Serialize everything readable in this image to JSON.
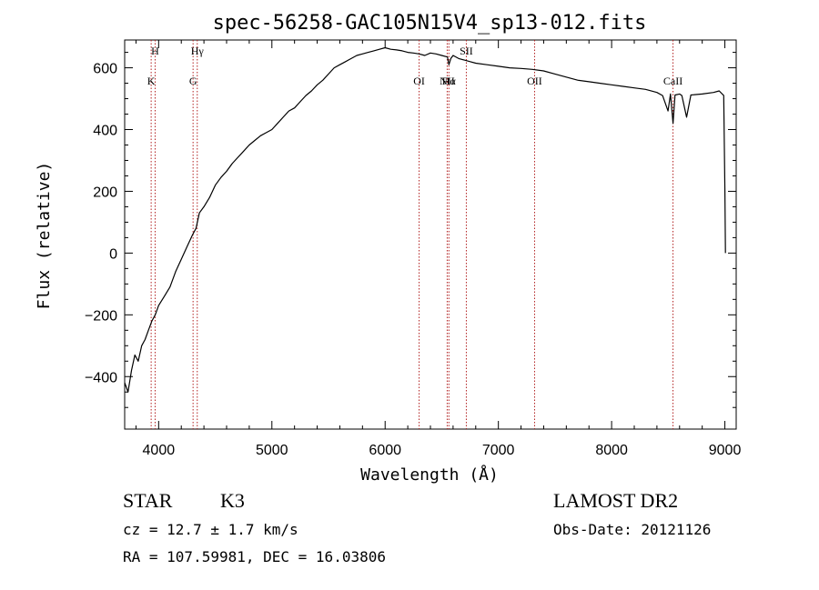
{
  "chart_data": {
    "type": "line",
    "title": "spec-56258-GAC105N15V4_sp13-012.fits",
    "xlabel": "Wavelength (Å)",
    "ylabel": "Flux (relative)",
    "xlim": [
      3700,
      9100
    ],
    "ylim": [
      -570,
      690
    ],
    "x_ticks": [
      4000,
      5000,
      6000,
      7000,
      8000,
      9000
    ],
    "y_ticks": [
      -400,
      -200,
      0,
      200,
      400,
      600
    ],
    "grid": false,
    "series": [
      {
        "name": "flux",
        "color": "#000000",
        "x": [
          3700,
          3730,
          3760,
          3790,
          3820,
          3850,
          3880,
          3910,
          3940,
          3970,
          4000,
          4050,
          4100,
          4150,
          4200,
          4250,
          4300,
          4330,
          4360,
          4400,
          4450,
          4500,
          4550,
          4600,
          4650,
          4700,
          4750,
          4800,
          4850,
          4900,
          4950,
          5000,
          5050,
          5100,
          5150,
          5200,
          5250,
          5300,
          5350,
          5400,
          5450,
          5500,
          5550,
          5600,
          5650,
          5700,
          5750,
          5800,
          5850,
          5900,
          5950,
          6000,
          6050,
          6100,
          6150,
          6200,
          6250,
          6300,
          6350,
          6400,
          6450,
          6500,
          6550,
          6563,
          6580,
          6600,
          6650,
          6700,
          6750,
          6800,
          6900,
          7000,
          7100,
          7200,
          7300,
          7400,
          7500,
          7600,
          7700,
          7800,
          7900,
          8000,
          8100,
          8200,
          8300,
          8400,
          8450,
          8498,
          8520,
          8542,
          8560,
          8600,
          8620,
          8662,
          8700,
          8800,
          8900,
          8950,
          8990,
          9000,
          9005
        ],
        "y": [
          -420,
          -450,
          -380,
          -330,
          -350,
          -300,
          -280,
          -250,
          -220,
          -200,
          -170,
          -140,
          -110,
          -60,
          -20,
          20,
          60,
          80,
          130,
          150,
          180,
          220,
          245,
          265,
          290,
          310,
          330,
          350,
          365,
          380,
          390,
          400,
          420,
          440,
          460,
          470,
          490,
          510,
          525,
          545,
          560,
          580,
          600,
          610,
          620,
          630,
          640,
          645,
          650,
          655,
          660,
          665,
          660,
          658,
          655,
          650,
          648,
          645,
          640,
          648,
          645,
          640,
          635,
          610,
          630,
          640,
          630,
          625,
          620,
          615,
          610,
          605,
          600,
          598,
          595,
          590,
          580,
          570,
          560,
          555,
          550,
          545,
          540,
          535,
          530,
          520,
          510,
          460,
          515,
          420,
          512,
          515,
          510,
          440,
          512,
          515,
          520,
          525,
          510,
          200,
          0
        ]
      }
    ],
    "line_markers": [
      {
        "wavelength": 3934,
        "label": "K"
      },
      {
        "wavelength": 3969,
        "label": "H"
      },
      {
        "wavelength": 4304,
        "label": "G"
      },
      {
        "wavelength": 4341,
        "label": "Hγ"
      },
      {
        "wavelength": 6300,
        "label": "OI"
      },
      {
        "wavelength": 6548,
        "label": "NII"
      },
      {
        "wavelength": 6563,
        "label": "Hα"
      },
      {
        "wavelength": 6717,
        "label": "SII"
      },
      {
        "wavelength": 7320,
        "label": "OII"
      },
      {
        "wavelength": 8542,
        "label": "CaII"
      }
    ],
    "marker_color": "#b22222"
  },
  "info": {
    "object_class": "STAR",
    "subclass": "K3",
    "survey": "LAMOST DR2",
    "redshift": "cz = 12.7 ± 1.7 km/s",
    "obs_date": "Obs-Date: 20121126",
    "coords": "RA = 107.59981, DEC =  16.03806"
  }
}
